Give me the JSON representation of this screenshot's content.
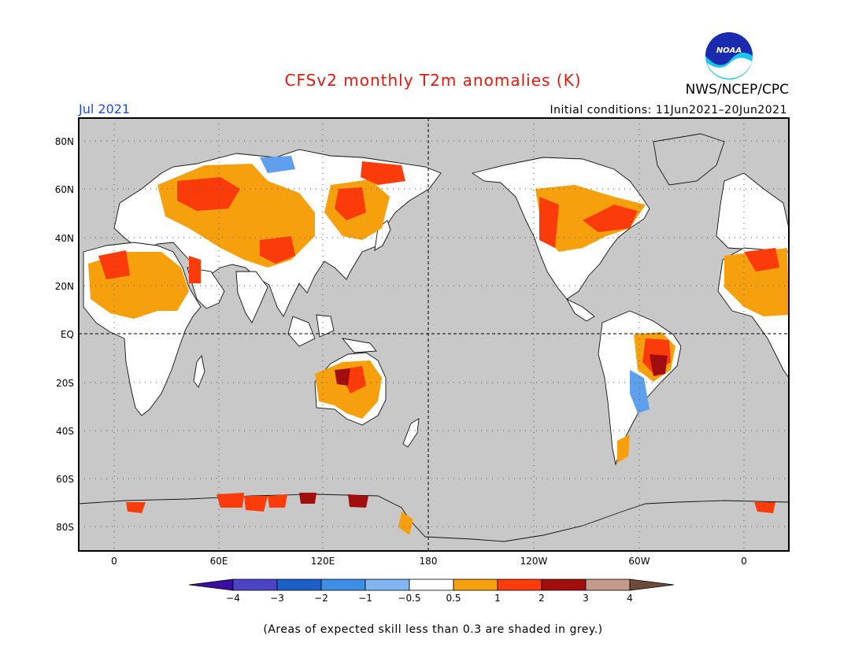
{
  "title": "CFSv2 monthly T2m anomalies (K)",
  "organization": "NWS/NCEP/CPC",
  "logo_text": "NOAA",
  "valid_month": "Jul 2021",
  "initial_conditions": "Initial conditions: 11Jun2021–20Jun2021",
  "footnote": "(Areas of expected skill less than 0.3 are shaded in grey.)",
  "map": {
    "background": "#c8c8c8",
    "y_tick_labels": [
      "80N",
      "60N",
      "40N",
      "20N",
      "EQ",
      "20S",
      "40S",
      "60S",
      "80S"
    ],
    "x_tick_labels": [
      "0",
      "60E",
      "120E",
      "180",
      "120W",
      "60W",
      "0"
    ]
  },
  "colorbar": {
    "tick_labels": [
      "−4",
      "−3",
      "−2",
      "−1",
      "−0.5",
      "0.5",
      "1",
      "2",
      "3",
      "4"
    ],
    "colors": [
      "#3a0e9e",
      "#4b44c8",
      "#1d5fc9",
      "#3f8ee6",
      "#82b6f2",
      "#ffffff",
      "#f7a00e",
      "#fb3c0a",
      "#a20d0d",
      "#c49a8a",
      "#6e4a3a"
    ]
  }
}
